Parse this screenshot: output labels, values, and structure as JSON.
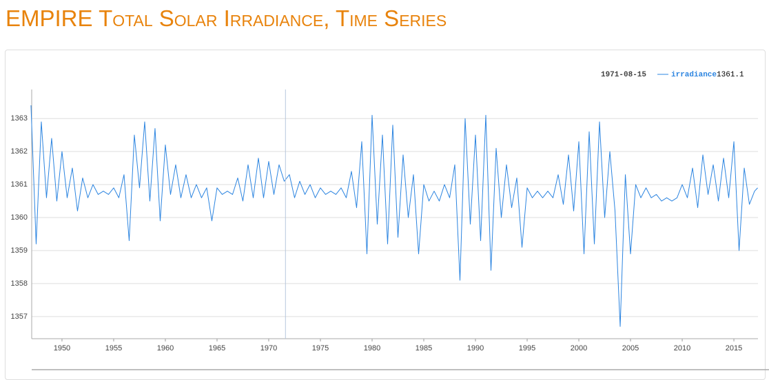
{
  "chart_data": {
    "type": "line",
    "title": "EMPIRE Total Solar Irradiance, Time Series",
    "x": [
      1947.0,
      1947.5,
      1948.0,
      1948.5,
      1949.0,
      1949.5,
      1950.0,
      1950.5,
      1951.0,
      1951.5,
      1952.0,
      1952.5,
      1953.0,
      1953.5,
      1954.0,
      1954.5,
      1955.0,
      1955.5,
      1956.0,
      1956.5,
      1957.0,
      1957.5,
      1958.0,
      1958.5,
      1959.0,
      1959.5,
      1960.0,
      1960.5,
      1961.0,
      1961.5,
      1962.0,
      1962.5,
      1963.0,
      1963.5,
      1964.0,
      1964.5,
      1965.0,
      1965.5,
      1966.0,
      1966.5,
      1967.0,
      1967.5,
      1968.0,
      1968.5,
      1969.0,
      1969.5,
      1970.0,
      1970.5,
      1971.0,
      1971.5,
      1972.0,
      1972.5,
      1973.0,
      1973.5,
      1974.0,
      1974.5,
      1975.0,
      1975.5,
      1976.0,
      1976.5,
      1977.0,
      1977.5,
      1978.0,
      1978.5,
      1979.0,
      1979.5,
      1980.0,
      1980.5,
      1981.0,
      1981.5,
      1982.0,
      1982.5,
      1983.0,
      1983.5,
      1984.0,
      1984.5,
      1985.0,
      1985.5,
      1986.0,
      1986.5,
      1987.0,
      1987.5,
      1988.0,
      1988.5,
      1989.0,
      1989.5,
      1990.0,
      1990.5,
      1991.0,
      1991.5,
      1992.0,
      1992.5,
      1993.0,
      1993.5,
      1994.0,
      1994.5,
      1995.0,
      1995.5,
      1996.0,
      1996.5,
      1997.0,
      1997.5,
      1998.0,
      1998.5,
      1999.0,
      1999.5,
      2000.0,
      2000.5,
      2001.0,
      2001.5,
      2002.0,
      2002.5,
      2003.0,
      2003.5,
      2004.0,
      2004.5,
      2005.0,
      2005.5,
      2006.0,
      2006.5,
      2007.0,
      2007.5,
      2008.0,
      2008.5,
      2009.0,
      2009.5,
      2010.0,
      2010.5,
      2011.0,
      2011.5,
      2012.0,
      2012.5,
      2013.0,
      2013.5,
      2014.0,
      2014.5,
      2015.0,
      2015.5,
      2016.0,
      2016.5,
      2017.0,
      2017.3
    ],
    "series": [
      {
        "name": "irradiance",
        "color": "#2b84e0",
        "values": [
          1363.4,
          1359.2,
          1362.9,
          1360.6,
          1362.4,
          1360.5,
          1362.0,
          1360.6,
          1361.5,
          1360.2,
          1361.2,
          1360.6,
          1361.0,
          1360.7,
          1360.8,
          1360.7,
          1360.9,
          1360.6,
          1361.3,
          1359.3,
          1362.5,
          1360.9,
          1362.9,
          1360.5,
          1362.7,
          1359.9,
          1362.2,
          1360.7,
          1361.6,
          1360.6,
          1361.3,
          1360.6,
          1361.0,
          1360.6,
          1360.9,
          1359.9,
          1360.9,
          1360.7,
          1360.8,
          1360.7,
          1361.2,
          1360.5,
          1361.6,
          1360.6,
          1361.8,
          1360.6,
          1361.7,
          1360.7,
          1361.6,
          1361.1,
          1361.3,
          1360.6,
          1361.1,
          1360.7,
          1361.0,
          1360.6,
          1360.9,
          1360.7,
          1360.8,
          1360.7,
          1360.9,
          1360.6,
          1361.4,
          1360.3,
          1362.3,
          1358.9,
          1363.1,
          1359.8,
          1362.5,
          1359.2,
          1362.8,
          1359.4,
          1361.9,
          1360.0,
          1361.3,
          1358.9,
          1361.0,
          1360.5,
          1360.8,
          1360.5,
          1361.0,
          1360.6,
          1361.6,
          1358.1,
          1363.0,
          1359.8,
          1362.5,
          1359.3,
          1363.1,
          1358.4,
          1362.1,
          1360.0,
          1361.6,
          1360.3,
          1361.2,
          1359.1,
          1360.9,
          1360.6,
          1360.8,
          1360.6,
          1360.8,
          1360.6,
          1361.3,
          1360.4,
          1361.9,
          1360.2,
          1362.3,
          1358.9,
          1362.6,
          1359.2,
          1362.9,
          1360.0,
          1362.0,
          1360.2,
          1356.7,
          1361.3,
          1358.9,
          1361.0,
          1360.6,
          1360.9,
          1360.6,
          1360.7,
          1360.5,
          1360.6,
          1360.5,
          1360.6,
          1361.0,
          1360.6,
          1361.5,
          1360.3,
          1361.9,
          1360.7,
          1361.6,
          1360.5,
          1361.8,
          1360.6,
          1362.3,
          1359.0,
          1361.5,
          1360.4,
          1360.8,
          1360.9
        ]
      }
    ],
    "xlim": [
      1947.07,
      2017.33
    ],
    "xticks": [
      1950,
      1955,
      1960,
      1965,
      1970,
      1975,
      1980,
      1985,
      1990,
      1995,
      2000,
      2005,
      2010,
      2015
    ],
    "ylim": [
      1356.33,
      1363.88
    ],
    "yticks": [
      1357,
      1358,
      1359,
      1360,
      1361,
      1362,
      1363
    ],
    "grid": true,
    "highlight": {
      "label": "1971-08-15",
      "x": 1971.62,
      "value": 1361.1
    }
  }
}
